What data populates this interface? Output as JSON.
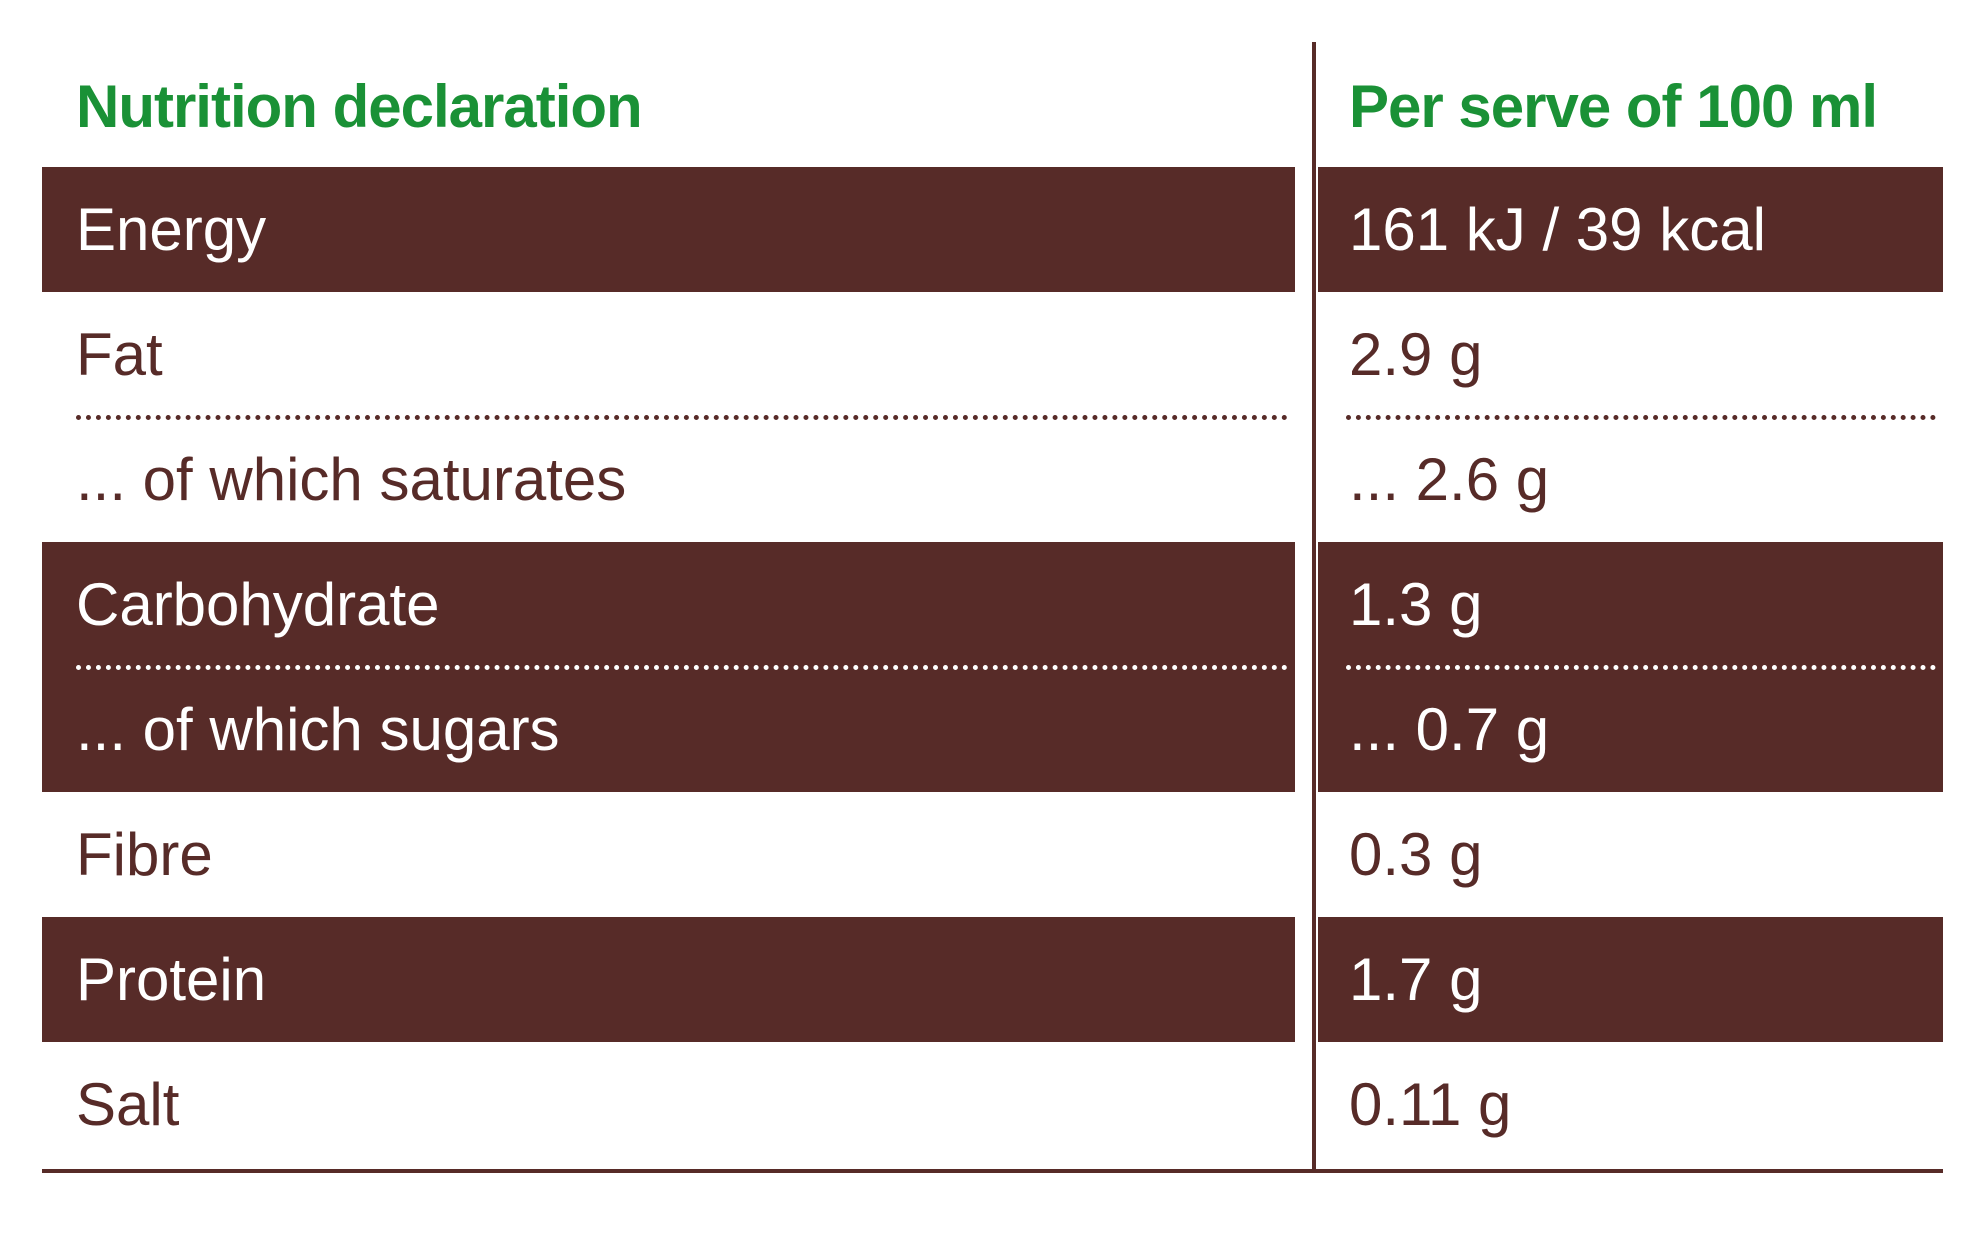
{
  "table": {
    "header": [
      "Nutrition declaration",
      "Per serve of 100 ml"
    ],
    "rows": [
      [
        "Energy",
        "161 kJ / 39 kcal"
      ],
      [
        "Fat",
        "2.9 g"
      ],
      [
        "... of which saturates",
        "... 2.6 g"
      ],
      [
        "Carbohydrate",
        "1.3 g"
      ],
      [
        "... of which sugars",
        "... 0.7 g"
      ],
      [
        "Fibre",
        "0.3 g"
      ],
      [
        "Protein",
        "1.7 g"
      ],
      [
        "Salt",
        "0.11 g"
      ]
    ]
  }
}
